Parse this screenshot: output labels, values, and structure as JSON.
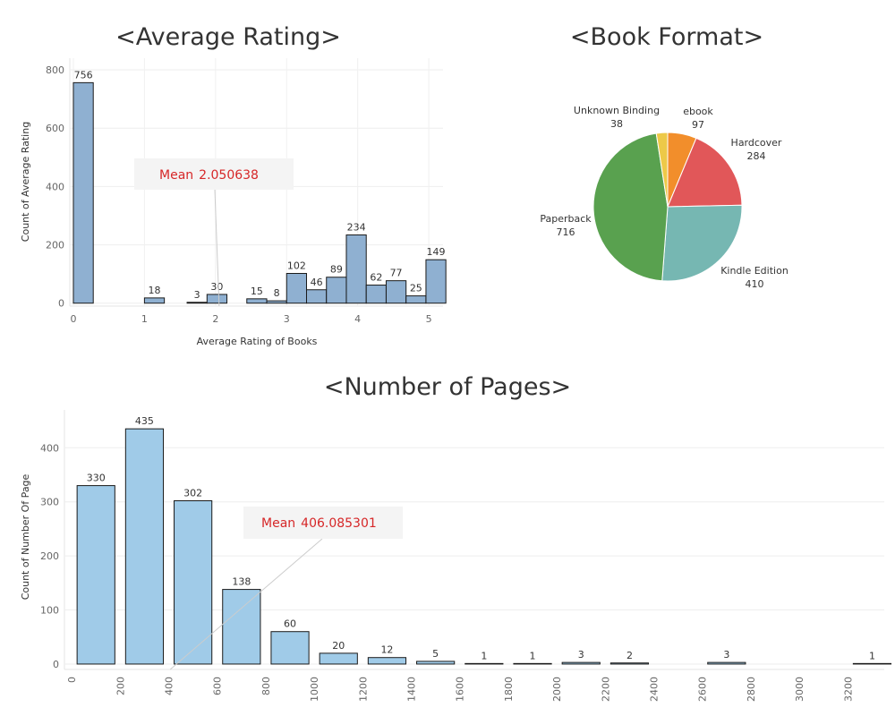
{
  "chart_data": [
    {
      "id": "rating",
      "type": "bar",
      "title": "<Average Rating>",
      "xlabel": "Average Rating of Books",
      "ylabel": "Count of Average Rating",
      "xlim": [
        -0.05,
        5.2
      ],
      "ylim": [
        -10,
        840
      ],
      "xticks": [
        0,
        1,
        2,
        3,
        4,
        5
      ],
      "yticks": [
        0,
        200,
        400,
        600,
        800
      ],
      "bin_width": 0.28,
      "bars": [
        {
          "x": 0.0,
          "value": 756
        },
        {
          "x": 1.0,
          "value": 18
        },
        {
          "x": 1.6,
          "value": 3
        },
        {
          "x": 1.88,
          "value": 30
        },
        {
          "x": 2.44,
          "value": 15
        },
        {
          "x": 2.72,
          "value": 8
        },
        {
          "x": 3.0,
          "value": 102
        },
        {
          "x": 3.28,
          "value": 46
        },
        {
          "x": 3.56,
          "value": 89
        },
        {
          "x": 3.84,
          "value": 234
        },
        {
          "x": 4.12,
          "value": 62
        },
        {
          "x": 4.4,
          "value": 77
        },
        {
          "x": 4.68,
          "value": 25
        },
        {
          "x": 4.96,
          "value": 149
        }
      ],
      "mean_label": "Mean",
      "mean_value": "2.050638",
      "mean": 2.050638
    },
    {
      "id": "format",
      "type": "pie",
      "title": "<Book Format>",
      "slices": [
        {
          "label": "ebook",
          "value": 97,
          "color": "#f28e2b"
        },
        {
          "label": "Hardcover",
          "value": 284,
          "color": "#e15759"
        },
        {
          "label": "Kindle Edition",
          "value": 410,
          "color": "#76b7b2"
        },
        {
          "label": "Paperback",
          "value": 716,
          "color": "#59a14f"
        },
        {
          "label": "Unknown Binding",
          "value": 38,
          "color": "#edc948"
        }
      ]
    },
    {
      "id": "pages",
      "type": "bar",
      "title": "<Number of Pages>",
      "ylabel": "Count of Number Of Page",
      "xlabel": "",
      "xlim": [
        -30,
        3350
      ],
      "ylim": [
        -10,
        470
      ],
      "xticks": [
        0,
        200,
        400,
        600,
        800,
        1000,
        1200,
        1400,
        1600,
        1800,
        2000,
        2200,
        2400,
        2600,
        2800,
        3000,
        3200
      ],
      "yticks": [
        0,
        100,
        200,
        300,
        400
      ],
      "bin_width": 200,
      "bars": [
        {
          "x": 0,
          "value": 330
        },
        {
          "x": 200,
          "value": 435
        },
        {
          "x": 400,
          "value": 302
        },
        {
          "x": 600,
          "value": 138
        },
        {
          "x": 800,
          "value": 60
        },
        {
          "x": 1000,
          "value": 20
        },
        {
          "x": 1200,
          "value": 12
        },
        {
          "x": 1400,
          "value": 5
        },
        {
          "x": 1600,
          "value": 1
        },
        {
          "x": 1800,
          "value": 1
        },
        {
          "x": 2000,
          "value": 3
        },
        {
          "x": 2200,
          "value": 2
        },
        {
          "x": 2600,
          "value": 3
        },
        {
          "x": 3200,
          "value": 1
        }
      ],
      "mean_label": "Mean",
      "mean_value": "406.085301",
      "mean": 406.085301
    }
  ]
}
